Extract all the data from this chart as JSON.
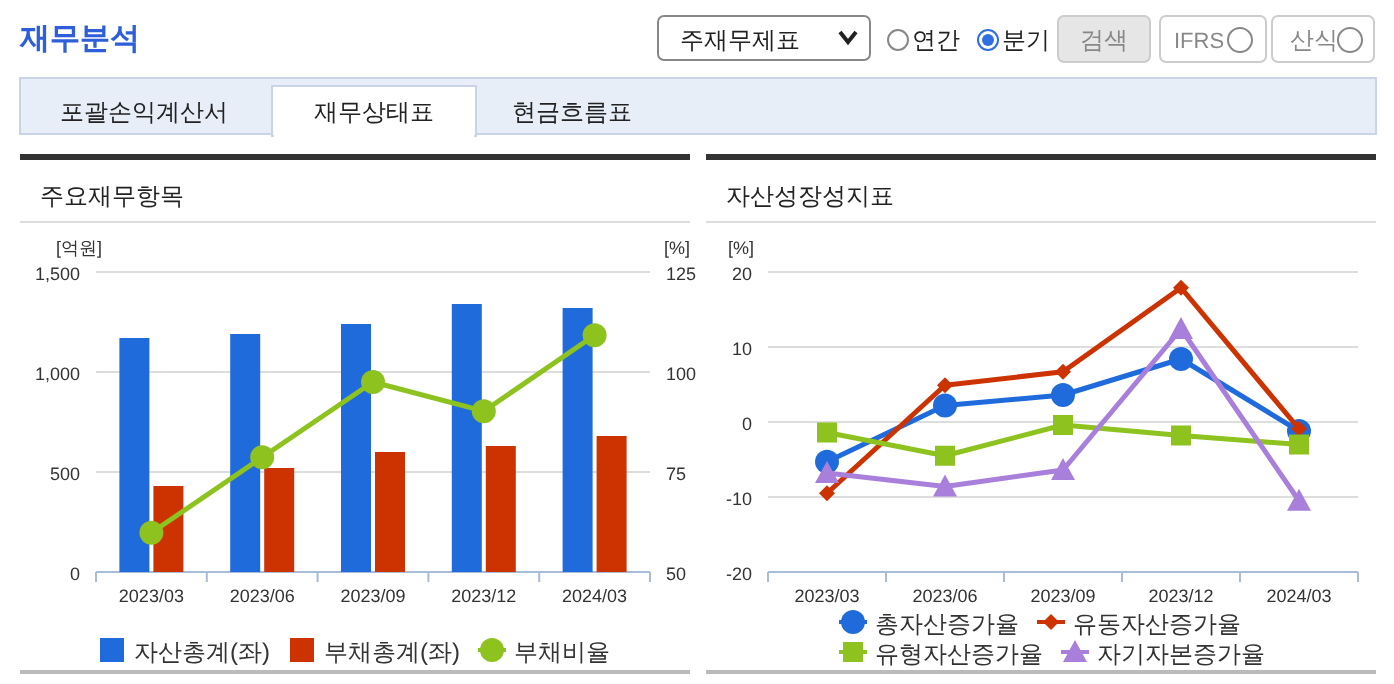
{
  "chart_data": [
    {
      "type": "bar",
      "title": "주요재무항목",
      "ylabel": "[억원]",
      "y2label": "[%]",
      "annotations": [
        "재무분석",
        "주재무제표",
        "연간",
        "분기",
        "검색",
        "IFRS",
        "산식",
        "포괄손익계산서",
        "재무상태표",
        "현금흐름표"
      ],
      "categories": [
        "2023/03",
        "2023/06",
        "2023/09",
        "2023/12",
        "2024/03"
      ],
      "ylim": [
        0,
        1500
      ],
      "yticks": [
        0,
        500,
        {
          "value": 1000,
          "label": "1,000"
        },
        {
          "value": 1500,
          "label": "1,500"
        }
      ],
      "y2lim": [
        50,
        125
      ],
      "y2ticks": [
        50,
        75,
        100,
        125
      ],
      "grid": "y",
      "legend": "bottom",
      "series": [
        {
          "name": "자산총계(좌)",
          "type": "bar",
          "color": "#1f6bdc",
          "values": [
            1170,
            1190,
            1240,
            1340,
            1320
          ]
        },
        {
          "name": "부채총계(좌)",
          "type": "bar",
          "color": "#cc3300",
          "values": [
            430,
            520,
            600,
            630,
            680
          ]
        },
        {
          "name": "부채비율",
          "type": "line",
          "axis": "y2",
          "marker": "circle",
          "color": "#8dc21f",
          "values": [
            59.8,
            78.7,
            97.5,
            90.2,
            109.2
          ]
        }
      ]
    },
    {
      "type": "line",
      "title": "자산성장성지표",
      "ylabel": "[%]",
      "categories": [
        "2023/03",
        "2023/06",
        "2023/09",
        "2023/12",
        "2024/03"
      ],
      "ylim": [
        -20,
        20
      ],
      "yticks": [
        {
          "value": -20,
          "label": "-20"
        },
        {
          "value": -10,
          "label": "-10"
        },
        0,
        10,
        20
      ],
      "grid": "y",
      "legend": "bottom",
      "series": [
        {
          "name": "총자산증가율",
          "marker": "circle",
          "color": "#1f6bdc",
          "values": [
            -5.3,
            2.2,
            3.6,
            8.4,
            -1.2
          ]
        },
        {
          "name": "유동자산증가율",
          "marker": "diamond",
          "color": "#cc3300",
          "values": [
            -9.5,
            4.9,
            6.7,
            17.9,
            -0.9
          ]
        },
        {
          "name": "유형자산증가율",
          "marker": "square",
          "color": "#8dc21f",
          "values": [
            -1.4,
            -4.5,
            -0.4,
            -1.8,
            -3.0
          ]
        },
        {
          "name": "자기자본증가율",
          "marker": "triangle",
          "color": "#a97fdc",
          "values": [
            -6.8,
            -8.6,
            -6.4,
            12.4,
            -10.5
          ]
        }
      ]
    }
  ]
}
